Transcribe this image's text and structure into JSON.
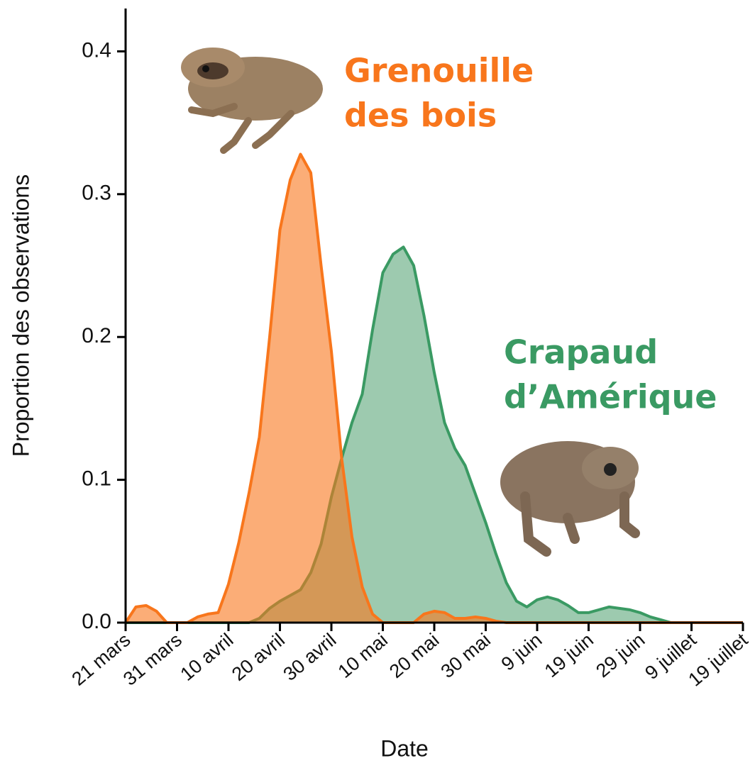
{
  "chart_data": {
    "type": "area",
    "xlabel": "Date",
    "ylabel": "Proportion des observations",
    "x": [
      0,
      2,
      4,
      6,
      8,
      10,
      12,
      14,
      16,
      18,
      20,
      22,
      24,
      26,
      28,
      30,
      32,
      34,
      36,
      38,
      40,
      42,
      44,
      46,
      48,
      50,
      52,
      54,
      56,
      58,
      60,
      62,
      64,
      66,
      68,
      70,
      72,
      74,
      76,
      78,
      80,
      82,
      84,
      86,
      88,
      90,
      92,
      94,
      96,
      98,
      100,
      102,
      104,
      106,
      108,
      110,
      112,
      114,
      116,
      118,
      120
    ],
    "series": [
      {
        "label": [
          "Crapaud",
          "d’Amérique"
        ],
        "color": "#3a9a63",
        "fill": "#9dcaaf",
        "values": [
          0,
          0,
          0,
          0,
          0,
          0,
          0,
          0,
          0,
          0,
          0,
          0,
          0,
          0.003,
          0.01,
          0.015,
          0.019,
          0.023,
          0.035,
          0.055,
          0.088,
          0.115,
          0.14,
          0.16,
          0.205,
          0.245,
          0.258,
          0.263,
          0.25,
          0.215,
          0.175,
          0.14,
          0.122,
          0.11,
          0.09,
          0.07,
          0.048,
          0.028,
          0.015,
          0.011,
          0.016,
          0.018,
          0.016,
          0.012,
          0.007,
          0.007,
          0.009,
          0.011,
          0.01,
          0.009,
          0.007,
          0.004,
          0.002,
          0,
          0,
          0,
          0,
          0,
          0,
          0,
          0
        ]
      },
      {
        "label": [
          "Grenouille",
          "des bois"
        ],
        "color": "#f8761c",
        "fill": "#f8761c",
        "values": [
          0,
          0.011,
          0.012,
          0.008,
          0,
          0,
          0,
          0.004,
          0.006,
          0.007,
          0.027,
          0.056,
          0.091,
          0.13,
          0.2,
          0.275,
          0.31,
          0.328,
          0.315,
          0.25,
          0.19,
          0.115,
          0.06,
          0.025,
          0.006,
          0,
          0,
          0,
          0,
          0.006,
          0.008,
          0.007,
          0.003,
          0.003,
          0.004,
          0.003,
          0.001,
          0,
          0,
          0,
          0,
          0,
          0,
          0,
          0,
          0,
          0,
          0,
          0,
          0,
          0,
          0,
          0,
          0,
          0,
          0,
          0,
          0,
          0,
          0,
          0
        ]
      }
    ],
    "xlim": [
      0,
      120
    ],
    "xticks": [
      {
        "value": 0,
        "label": "21 mars"
      },
      {
        "value": 10,
        "label": "31 mars"
      },
      {
        "value": 20,
        "label": "10 avril"
      },
      {
        "value": 30,
        "label": "20 avril"
      },
      {
        "value": 40,
        "label": "30 avril"
      },
      {
        "value": 50,
        "label": "10 mai"
      },
      {
        "value": 60,
        "label": "20 mai"
      },
      {
        "value": 70,
        "label": "30 mai"
      },
      {
        "value": 80,
        "label": "9 juin"
      },
      {
        "value": 90,
        "label": "19 juin"
      },
      {
        "value": 100,
        "label": "29 juin"
      },
      {
        "value": 110,
        "label": "9 juillet"
      },
      {
        "value": 120,
        "label": "19 juillet"
      }
    ],
    "ylim": [
      0,
      0.43
    ],
    "yticks": [
      {
        "value": 0,
        "label": "0.0"
      },
      0.1,
      0.2,
      0.3,
      0.4
    ]
  }
}
